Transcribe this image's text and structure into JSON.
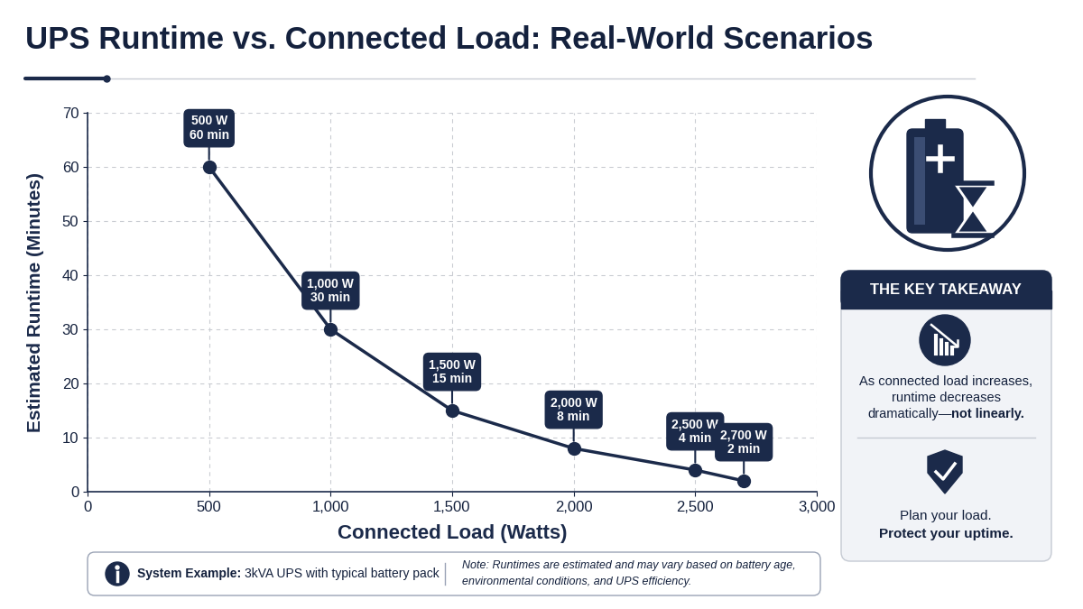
{
  "chart_data": {
    "type": "line",
    "title": "UPS Runtime vs. Connected Load: Real-World Scenarios",
    "x_label": "Connected Load (Watts)",
    "y_label": "Estimated Runtime (Minutes)",
    "x": [
      500,
      1000,
      1500,
      2000,
      2500,
      2700
    ],
    "values": [
      60,
      30,
      15,
      8,
      4,
      2
    ],
    "value_labels": [
      "500 W\n60 min",
      "1,000 W\n30 min",
      "1,500 W\n15 min",
      "2,000 W\n8 min",
      "2,500 W\n4 min",
      "2,700 W\n2 min"
    ],
    "color": "#1b2a4a",
    "marker": "circle",
    "line_style": "solid",
    "data_labels": true,
    "grid": true,
    "xlim": [
      0,
      3000
    ],
    "xticks": [
      0,
      500,
      {
        "value": 1000,
        "label": "1,000"
      },
      {
        "value": 1500,
        "label": "1,500"
      },
      {
        "value": 2000,
        "label": "2,000"
      },
      {
        "value": 2500,
        "label": "2,500"
      },
      {
        "value": 3000,
        "label": "3,000"
      }
    ],
    "ylim": [
      0,
      70
    ],
    "yticks": [
      0,
      10,
      20,
      30,
      40,
      50,
      60,
      70
    ]
  },
  "side_panel": {
    "heading": "THE KEY TAKEAWAY",
    "takeaway": {
      "lines": [
        "As connected load increases,",
        "runtime decreases",
        "dramatically—not linearly."
      ],
      "bold_part": "not linearly."
    },
    "closing": {
      "text": "Plan your load.",
      "bold_text": "Protect your uptime."
    }
  },
  "footer": {
    "system_label": "System Example:",
    "system_text": "3kVA UPS with typical battery pack",
    "note_lines": [
      "Note: Runtimes are estimated and may vary based on battery age,",
      "environmental conditions, and UPS efficiency."
    ]
  }
}
